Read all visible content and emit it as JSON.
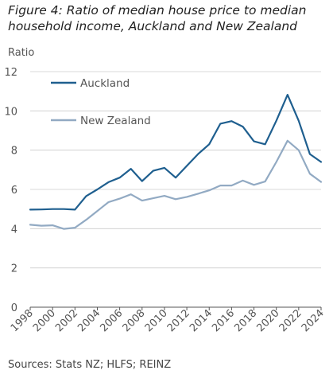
{
  "chart_data": {
    "type": "line",
    "title": "Figure 4: Ratio of median house price to median household income, Auckland and New Zealand",
    "ylabel": "Ratio",
    "xlabel": "",
    "source": "Sources: Stats NZ; HLFS; REINZ",
    "ylim": [
      0,
      12
    ],
    "yticks": [
      0,
      2,
      4,
      6,
      8,
      10,
      12
    ],
    "xlim": [
      1998,
      2024
    ],
    "xticks": [
      1998,
      2000,
      2002,
      2004,
      2006,
      2008,
      2010,
      2012,
      2014,
      2016,
      2018,
      2020,
      2022,
      2024
    ],
    "grid": "horizontal",
    "legend": "top-left",
    "x": [
      1998,
      1999,
      2000,
      2001,
      2002,
      2003,
      2004,
      2005,
      2006,
      2007,
      2008,
      2009,
      2010,
      2011,
      2012,
      2013,
      2014,
      2015,
      2016,
      2017,
      2018,
      2019,
      2020,
      2021,
      2022,
      2023,
      2024
    ],
    "series": [
      {
        "name": "Auckland",
        "color": "#1f5f8f",
        "values": [
          4.97,
          4.98,
          5.0,
          5.0,
          4.97,
          5.66,
          6.0,
          6.37,
          6.6,
          7.05,
          6.42,
          6.95,
          7.1,
          6.6,
          7.2,
          7.8,
          8.3,
          9.35,
          9.48,
          9.2,
          8.45,
          8.3,
          9.5,
          10.82,
          9.5,
          7.8,
          7.4
        ]
      },
      {
        "name": "New Zealand",
        "color": "#92aac3",
        "values": [
          4.2,
          4.15,
          4.17,
          3.99,
          4.05,
          4.45,
          4.9,
          5.35,
          5.53,
          5.75,
          5.43,
          5.55,
          5.67,
          5.5,
          5.62,
          5.78,
          5.95,
          6.2,
          6.2,
          6.45,
          6.23,
          6.4,
          7.4,
          8.48,
          8.0,
          6.8,
          6.38
        ]
      }
    ]
  }
}
